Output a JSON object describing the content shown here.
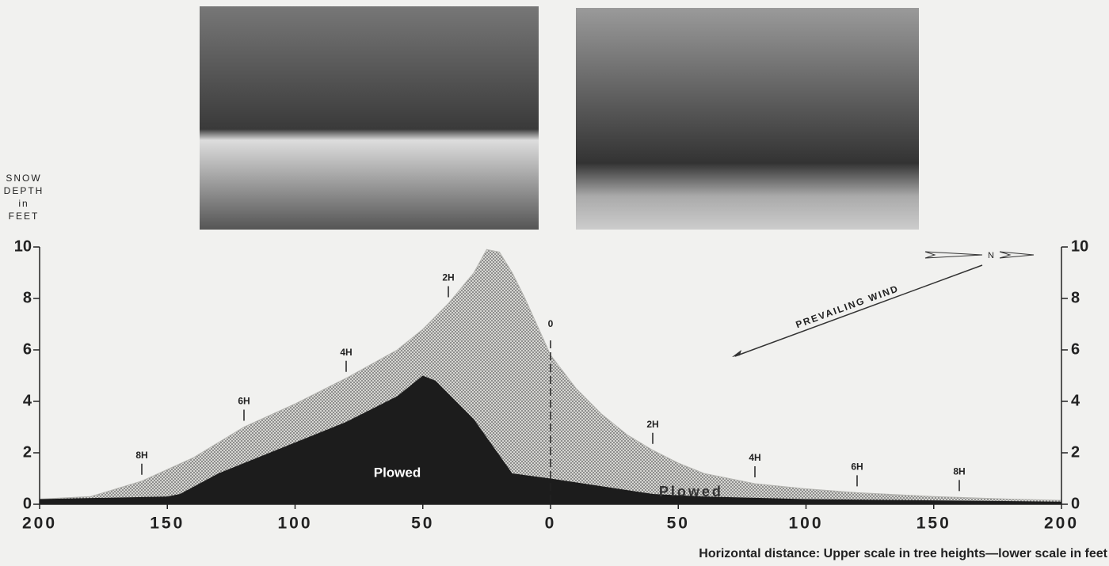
{
  "chart_data": {
    "type": "area",
    "y_label": [
      "SNOW",
      "DEPTH",
      "in",
      "FEET"
    ],
    "x_label": "Horizontal distance: Upper scale in tree heights—lower scale in feet",
    "xlim": [
      -200,
      200
    ],
    "xticks": [
      {
        "value": -200,
        "label": "200"
      },
      {
        "value": -150,
        "label": "150"
      },
      {
        "value": -100,
        "label": "100"
      },
      {
        "value": -50,
        "label": "50"
      },
      0,
      50,
      100,
      150,
      200
    ],
    "upper_scale": [
      {
        "value": -160,
        "label": "8H"
      },
      {
        "value": -120,
        "label": "6H"
      },
      {
        "value": -80,
        "label": "4H"
      },
      {
        "value": -40,
        "label": "2H"
      },
      {
        "value": 0,
        "label": "0"
      },
      {
        "value": 40,
        "label": "2H"
      },
      {
        "value": 80,
        "label": "4H"
      },
      {
        "value": 120,
        "label": "6H"
      },
      {
        "value": 160,
        "label": "8H"
      }
    ],
    "ylim": [
      0,
      10
    ],
    "yticks": [
      0,
      2,
      4,
      6,
      8,
      10
    ],
    "series": [
      {
        "color": "#b4b4b0",
        "x": [
          -200,
          -180,
          -160,
          -140,
          -120,
          -100,
          -80,
          -60,
          -50,
          -40,
          -30,
          -25,
          -20,
          -15,
          -10,
          0,
          10,
          20,
          30,
          40,
          50,
          60,
          80,
          100,
          120,
          150,
          180,
          200
        ],
        "values": [
          0.2,
          0.3,
          0.9,
          1.8,
          3.0,
          3.9,
          4.9,
          6.0,
          6.8,
          7.8,
          9.0,
          9.9,
          9.8,
          9.0,
          8.0,
          5.8,
          4.5,
          3.5,
          2.7,
          2.1,
          1.6,
          1.2,
          0.8,
          0.6,
          0.45,
          0.3,
          0.2,
          0.15
        ]
      },
      {
        "name": "Plowed",
        "color": "#1c1c1c",
        "x": [
          -200,
          -150,
          -145,
          -130,
          -100,
          -80,
          -60,
          -50,
          -45,
          -30,
          -15,
          0,
          20,
          40,
          60,
          100,
          200
        ],
        "values": [
          0.2,
          0.3,
          0.4,
          1.2,
          2.4,
          3.2,
          4.2,
          5.0,
          4.8,
          3.3,
          1.2,
          1.0,
          0.7,
          0.4,
          0.3,
          0.2,
          0.1
        ]
      }
    ],
    "annotations": [
      {
        "text": "Plowed",
        "x": -60,
        "y": 1.2
      },
      {
        "text": "Plowed",
        "x": 55,
        "y": 0.45
      },
      {
        "text": "PREVAILING WIND"
      },
      {
        "text": "N"
      }
    ]
  }
}
